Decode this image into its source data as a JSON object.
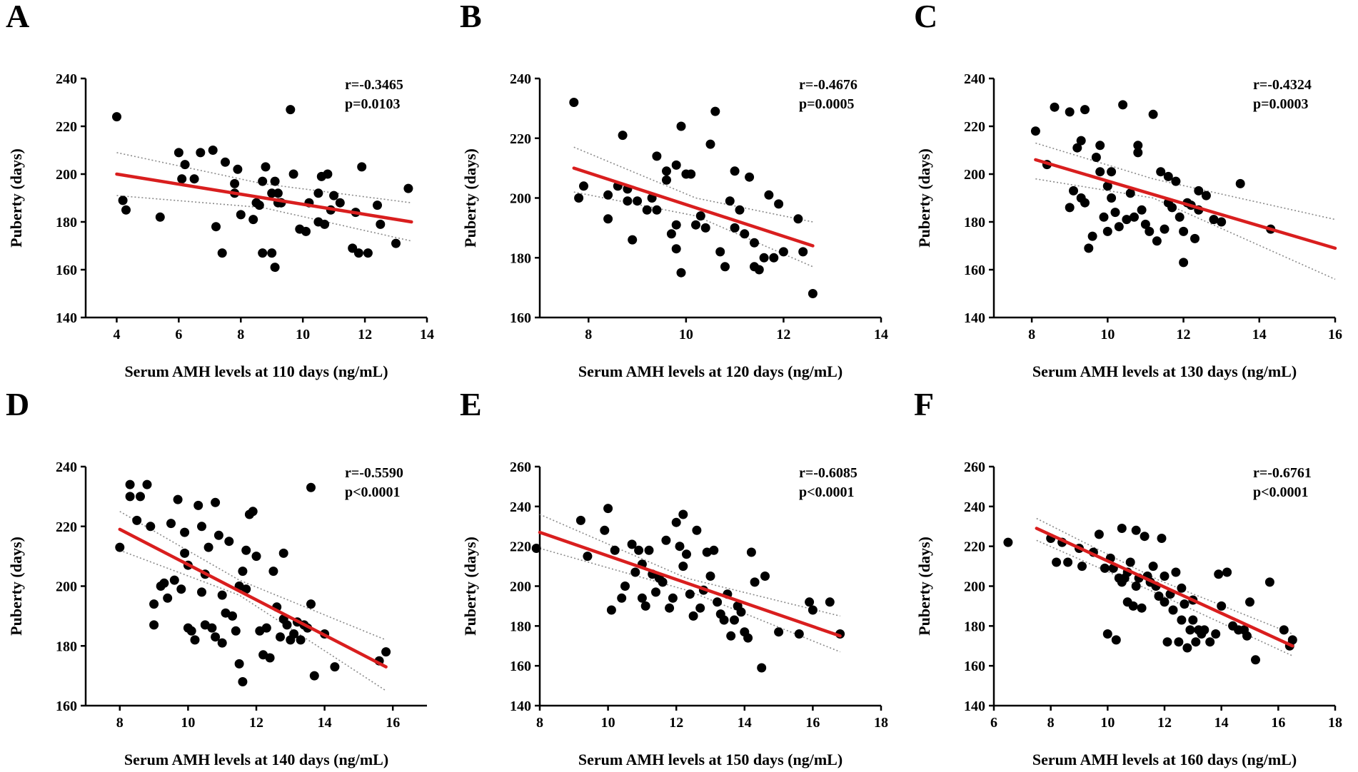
{
  "figure": {
    "panels": [
      "A",
      "B",
      "C",
      "D",
      "E",
      "F"
    ]
  },
  "chart_data": [
    {
      "panel": "A",
      "type": "scatter",
      "xlabel": "Serum AMH levels at 110 days (ng/mL)",
      "ylabel": "Puberty (days)",
      "xlim": [
        3,
        14
      ],
      "ylim": [
        140,
        240
      ],
      "xticks": [
        4,
        6,
        8,
        10,
        12,
        14
      ],
      "yticks": [
        140,
        160,
        180,
        200,
        220,
        240
      ],
      "r_text": "r=-0.3465",
      "p_text": "p=0.0103",
      "fit_line": {
        "x": [
          4,
          13.5
        ],
        "y": [
          200,
          180
        ]
      },
      "ci_upper": {
        "x": [
          4,
          8.7,
          13.5
        ],
        "y": [
          209,
          196,
          188
        ]
      },
      "ci_lower": {
        "x": [
          4,
          8.7,
          13.5
        ],
        "y": [
          191,
          186,
          172
        ]
      },
      "x": [
        4.0,
        4.2,
        4.3,
        5.4,
        6.0,
        6.1,
        6.2,
        6.5,
        6.7,
        7.1,
        7.2,
        7.4,
        7.5,
        7.8,
        7.8,
        7.9,
        8.0,
        8.4,
        8.5,
        8.6,
        8.7,
        8.7,
        8.8,
        9.0,
        9.0,
        9.1,
        9.1,
        9.2,
        9.2,
        9.3,
        9.3,
        9.6,
        9.7,
        9.9,
        10.1,
        10.2,
        10.5,
        10.5,
        10.6,
        10.7,
        10.8,
        10.9,
        11.0,
        11.2,
        11.6,
        11.7,
        11.8,
        11.9,
        12.1,
        12.4,
        12.5,
        13.0,
        13.4
      ],
      "y": [
        224,
        189,
        185,
        182,
        209,
        198,
        204,
        198,
        209,
        210,
        178,
        167,
        205,
        196,
        192,
        202,
        183,
        181,
        188,
        187,
        197,
        167,
        203,
        192,
        167,
        161,
        197,
        188,
        192,
        188,
        188,
        227,
        200,
        177,
        176,
        188,
        180,
        192,
        199,
        179,
        200,
        185,
        191,
        188,
        169,
        184,
        167,
        203,
        167,
        187,
        179,
        171,
        194
      ]
    },
    {
      "panel": "B",
      "type": "scatter",
      "xlabel": "Serum AMH levels at 120 days (ng/mL)",
      "ylabel": "Puberty (days)",
      "xlim": [
        7,
        14
      ],
      "ylim": [
        160,
        240
      ],
      "xticks": [
        8,
        10,
        12,
        14
      ],
      "yticks": [
        160,
        180,
        200,
        220,
        240
      ],
      "r_text": "r=-0.4676",
      "p_text": "p=0.0005",
      "fit_line": {
        "x": [
          7.7,
          12.6
        ],
        "y": [
          210,
          184
        ]
      },
      "ci_upper": {
        "x": [
          7.7,
          10.2,
          12.6
        ],
        "y": [
          217,
          200,
          192
        ]
      },
      "ci_lower": {
        "x": [
          7.7,
          10.2,
          12.6
        ],
        "y": [
          202,
          194,
          177
        ]
      },
      "x": [
        7.7,
        7.8,
        7.9,
        8.4,
        8.4,
        8.6,
        8.7,
        8.8,
        8.8,
        8.9,
        9.0,
        9.2,
        9.3,
        9.4,
        9.4,
        9.6,
        9.6,
        9.7,
        9.8,
        9.8,
        9.8,
        9.9,
        9.9,
        10.0,
        10.1,
        10.2,
        10.3,
        10.4,
        10.5,
        10.6,
        10.7,
        10.8,
        10.9,
        11.0,
        11.0,
        11.1,
        11.2,
        11.3,
        11.4,
        11.4,
        11.5,
        11.6,
        11.7,
        11.8,
        11.9,
        12.0,
        12.3,
        12.4,
        12.6
      ],
      "y": [
        232,
        200,
        204,
        193,
        201,
        204,
        221,
        199,
        203,
        186,
        199,
        196,
        200,
        196,
        214,
        206,
        209,
        188,
        211,
        191,
        183,
        224,
        175,
        208,
        208,
        191,
        194,
        190,
        218,
        229,
        182,
        177,
        199,
        190,
        209,
        196,
        188,
        207,
        185,
        177,
        176,
        180,
        201,
        180,
        198,
        182,
        193,
        182,
        168
      ]
    },
    {
      "panel": "C",
      "type": "scatter",
      "xlabel": "Serum AMH levels at 130 days (ng/mL)",
      "ylabel": "Puberty (days)",
      "xlim": [
        7,
        16
      ],
      "ylim": [
        140,
        240
      ],
      "xticks": [
        8,
        10,
        12,
        14,
        16
      ],
      "yticks": [
        140,
        160,
        180,
        200,
        220,
        240
      ],
      "r_text": "r=-0.4324",
      "p_text": "p=0.0003",
      "fit_line": {
        "x": [
          8.1,
          16
        ],
        "y": [
          206,
          169
        ]
      },
      "ci_upper": {
        "x": [
          8.1,
          11.2,
          16
        ],
        "y": [
          213,
          198,
          181
        ]
      },
      "ci_lower": {
        "x": [
          8.1,
          11.2,
          16
        ],
        "y": [
          198,
          190,
          156
        ]
      },
      "x": [
        8.1,
        8.4,
        8.6,
        9.0,
        9.0,
        9.1,
        9.2,
        9.3,
        9.3,
        9.4,
        9.4,
        9.5,
        9.6,
        9.7,
        9.8,
        9.8,
        9.9,
        10.0,
        10.0,
        10.1,
        10.1,
        10.2,
        10.3,
        10.4,
        10.5,
        10.6,
        10.7,
        10.8,
        10.8,
        10.9,
        11.0,
        11.1,
        11.2,
        11.3,
        11.4,
        11.5,
        11.6,
        11.6,
        11.7,
        11.8,
        11.9,
        12.0,
        12.0,
        12.1,
        12.2,
        12.3,
        12.4,
        12.4,
        12.6,
        12.8,
        13.0,
        13.5,
        14.3
      ],
      "y": [
        218,
        204,
        228,
        226,
        186,
        193,
        211,
        214,
        190,
        227,
        188,
        169,
        174,
        207,
        201,
        212,
        182,
        176,
        195,
        190,
        201,
        184,
        178,
        229,
        181,
        192,
        182,
        209,
        212,
        185,
        179,
        176,
        225,
        172,
        201,
        177,
        188,
        199,
        186,
        197,
        182,
        176,
        163,
        188,
        187,
        173,
        185,
        193,
        191,
        181,
        180,
        196,
        177
      ]
    },
    {
      "panel": "D",
      "type": "scatter",
      "xlabel": "Serum AMH levels at 140 days (ng/mL)",
      "ylabel": "Puberty (days)",
      "xlim": [
        7,
        17
      ],
      "ylim": [
        160,
        240
      ],
      "xticks": [
        8,
        10,
        12,
        14,
        16
      ],
      "yticks": [
        160,
        180,
        200,
        220,
        240
      ],
      "r_text": "r=-0.5590",
      "p_text": "p<0.0001",
      "fit_line": {
        "x": [
          8,
          15.8
        ],
        "y": [
          219,
          173
        ]
      },
      "ci_upper": {
        "x": [
          8,
          11.5,
          15.8
        ],
        "y": [
          225,
          202,
          182
        ]
      },
      "ci_lower": {
        "x": [
          8,
          11.5,
          15.8
        ],
        "y": [
          212,
          197,
          165
        ]
      },
      "x": [
        8.0,
        8.3,
        8.3,
        8.5,
        8.6,
        8.8,
        8.9,
        9.0,
        9.0,
        9.2,
        9.3,
        9.4,
        9.5,
        9.6,
        9.7,
        9.8,
        9.9,
        9.9,
        10.0,
        10.0,
        10.1,
        10.2,
        10.3,
        10.4,
        10.4,
        10.5,
        10.5,
        10.6,
        10.7,
        10.8,
        10.8,
        10.9,
        11.0,
        11.0,
        11.1,
        11.2,
        11.3,
        11.4,
        11.5,
        11.5,
        11.6,
        11.6,
        11.7,
        11.7,
        11.8,
        11.9,
        12.0,
        12.1,
        12.2,
        12.3,
        12.4,
        12.5,
        12.6,
        12.7,
        12.8,
        12.8,
        12.9,
        13.0,
        13.1,
        13.2,
        13.3,
        13.4,
        13.5,
        13.6,
        13.6,
        13.7,
        14.0,
        14.3,
        15.6,
        15.8
      ],
      "y": [
        213,
        230,
        234,
        222,
        230,
        234,
        220,
        187,
        194,
        200,
        201,
        196,
        221,
        202,
        229,
        199,
        211,
        218,
        186,
        207,
        185,
        182,
        227,
        198,
        220,
        204,
        187,
        213,
        186,
        228,
        183,
        217,
        181,
        197,
        191,
        215,
        190,
        185,
        200,
        174,
        168,
        205,
        212,
        199,
        224,
        225,
        210,
        185,
        177,
        186,
        176,
        205,
        193,
        183,
        189,
        211,
        187,
        182,
        184,
        188,
        182,
        187,
        186,
        233,
        194,
        170,
        184,
        173,
        175,
        178
      ]
    },
    {
      "panel": "E",
      "type": "scatter",
      "xlabel": "Serum AMH levels at 150 days (ng/mL)",
      "ylabel": "Puberty (days)",
      "xlim": [
        8,
        18
      ],
      "ylim": [
        140,
        260
      ],
      "xticks": [
        8,
        10,
        12,
        14,
        16,
        18
      ],
      "yticks": [
        140,
        160,
        180,
        200,
        220,
        240,
        260
      ],
      "r_text": "r=-0.6085",
      "p_text": "p<0.0001",
      "fit_line": {
        "x": [
          8.0,
          16.8
        ],
        "y": [
          227,
          175
        ]
      },
      "ci_upper": {
        "x": [
          8.0,
          12.3,
          16.8
        ],
        "y": [
          236,
          204,
          185
        ]
      },
      "ci_lower": {
        "x": [
          8.0,
          12.3,
          16.8
        ],
        "y": [
          219,
          198,
          167
        ]
      },
      "x": [
        7.9,
        9.2,
        9.4,
        9.9,
        10.0,
        10.1,
        10.2,
        10.4,
        10.5,
        10.7,
        10.8,
        10.9,
        11.0,
        11.0,
        11.1,
        11.2,
        11.3,
        11.4,
        11.5,
        11.6,
        11.7,
        11.8,
        11.9,
        12.0,
        12.1,
        12.2,
        12.2,
        12.3,
        12.4,
        12.5,
        12.6,
        12.7,
        12.8,
        12.9,
        13.0,
        13.1,
        13.2,
        13.3,
        13.4,
        13.5,
        13.6,
        13.7,
        13.8,
        13.9,
        14.0,
        14.1,
        14.2,
        14.3,
        14.5,
        14.6,
        15.0,
        15.6,
        15.9,
        16.0,
        16.5,
        16.8
      ],
      "y": [
        219,
        233,
        215,
        228,
        239,
        188,
        218,
        194,
        200,
        221,
        207,
        218,
        194,
        211,
        190,
        218,
        206,
        197,
        204,
        202,
        223,
        189,
        194,
        232,
        220,
        236,
        210,
        216,
        196,
        185,
        228,
        189,
        198,
        217,
        205,
        218,
        192,
        186,
        183,
        196,
        175,
        183,
        190,
        187,
        177,
        174,
        217,
        202,
        159,
        205,
        177,
        176,
        192,
        188,
        192,
        176
      ]
    },
    {
      "panel": "F",
      "type": "scatter",
      "xlabel": "Serum AMH levels at 160 days (ng/mL)",
      "ylabel": "Puberty (days)",
      "xlim": [
        6,
        18
      ],
      "ylim": [
        140,
        260
      ],
      "xticks": [
        6,
        8,
        10,
        12,
        14,
        16,
        18
      ],
      "yticks": [
        140,
        160,
        180,
        200,
        220,
        240,
        260
      ],
      "r_text": "r=-0.6761",
      "p_text": "p<0.0001",
      "fit_line": {
        "x": [
          7.5,
          16.5
        ],
        "y": [
          229,
          170
        ]
      },
      "ci_upper": {
        "x": [
          7.5,
          11.8,
          16.5
        ],
        "y": [
          234,
          203,
          176
        ]
      },
      "ci_lower": {
        "x": [
          7.5,
          11.8,
          16.5
        ],
        "y": [
          223,
          196,
          165
        ]
      },
      "x": [
        6.5,
        8.0,
        8.2,
        8.4,
        8.6,
        9.0,
        9.1,
        9.5,
        9.7,
        9.9,
        10.0,
        10.1,
        10.2,
        10.3,
        10.4,
        10.5,
        10.5,
        10.6,
        10.7,
        10.7,
        10.8,
        10.9,
        11.0,
        11.0,
        11.1,
        11.2,
        11.3,
        11.4,
        11.5,
        11.6,
        11.7,
        11.8,
        11.9,
        12.0,
        12.0,
        12.1,
        12.2,
        12.3,
        12.4,
        12.5,
        12.6,
        12.6,
        12.7,
        12.8,
        12.9,
        13.0,
        13.0,
        13.1,
        13.2,
        13.3,
        13.4,
        13.6,
        13.8,
        13.9,
        14.0,
        14.2,
        14.4,
        14.6,
        14.8,
        14.9,
        15.0,
        15.2,
        15.7,
        16.2,
        16.4,
        16.5
      ],
      "y": [
        222,
        224,
        212,
        222,
        212,
        219,
        210,
        217,
        226,
        209,
        176,
        214,
        209,
        173,
        204,
        229,
        202,
        204,
        207,
        192,
        212,
        190,
        228,
        200,
        204,
        189,
        225,
        205,
        202,
        210,
        200,
        195,
        224,
        192,
        205,
        172,
        196,
        188,
        207,
        172,
        183,
        199,
        191,
        169,
        178,
        183,
        193,
        172,
        178,
        176,
        178,
        172,
        176,
        206,
        190,
        207,
        180,
        178,
        178,
        175,
        192,
        163,
        202,
        178,
        170,
        173
      ]
    }
  ]
}
